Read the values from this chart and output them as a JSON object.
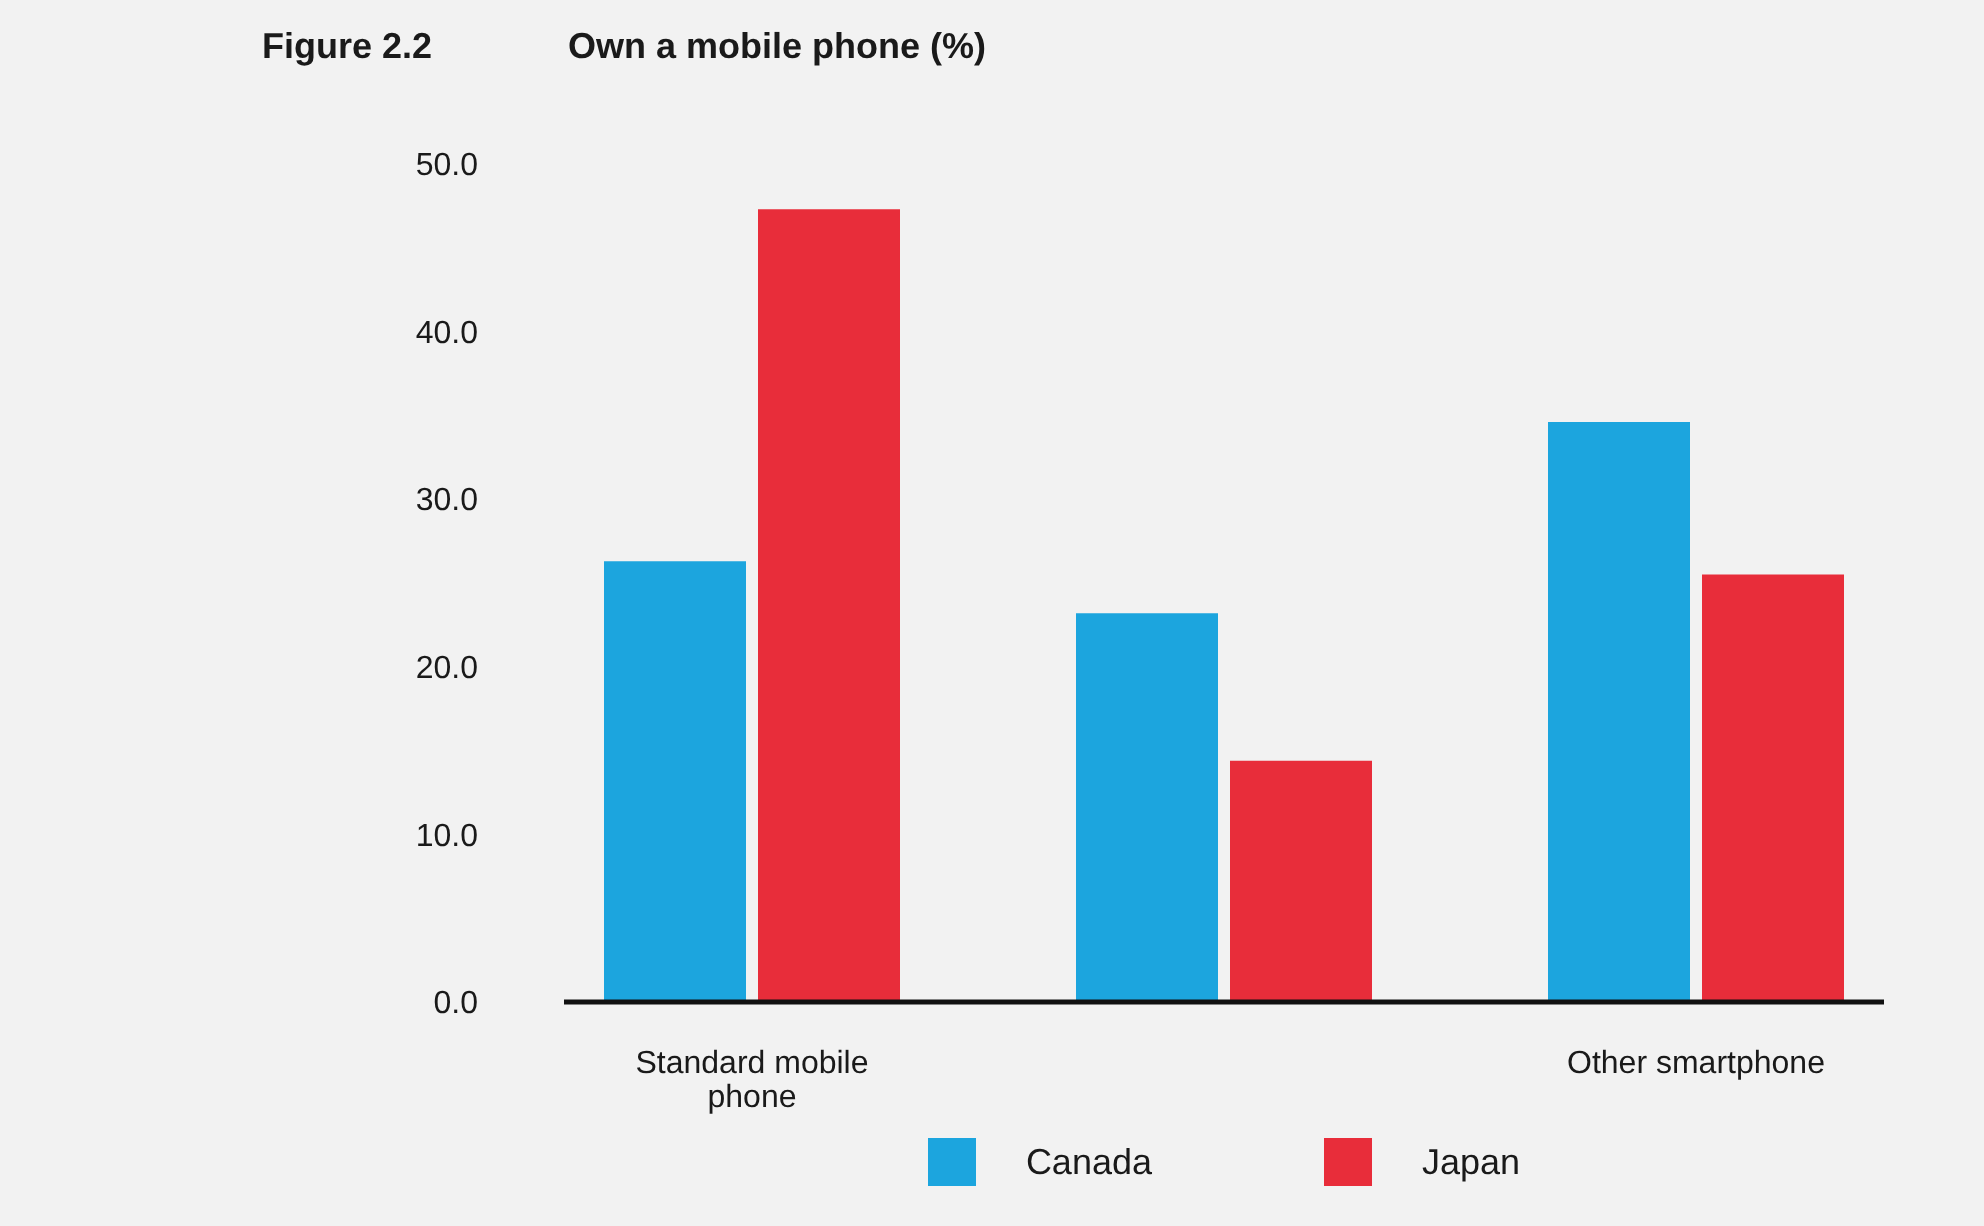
{
  "chart_data": {
    "type": "bar",
    "title": "Own a mobile phone (%)",
    "annotations": [
      "Figure 2.2"
    ],
    "categories": [
      "Standard mobile phone",
      null,
      "Other smartphone"
    ],
    "series": [
      {
        "name": "Canada",
        "color": "#1ca5de",
        "values": [
          26.3,
          23.2,
          34.6
        ]
      },
      {
        "name": "Japan",
        "color": "#e82d3a",
        "values": [
          47.3,
          14.4,
          25.5
        ]
      }
    ],
    "ylim": [
      0,
      50
    ],
    "yticks": [
      {
        "value": 0,
        "label": "0.0"
      },
      {
        "value": 10,
        "label": "10.0"
      },
      {
        "value": 20,
        "label": "20.0"
      },
      {
        "value": 30,
        "label": "30.0"
      },
      {
        "value": 40,
        "label": "40.0"
      },
      {
        "value": 50,
        "label": "50.0"
      }
    ],
    "legend": "bottom"
  }
}
